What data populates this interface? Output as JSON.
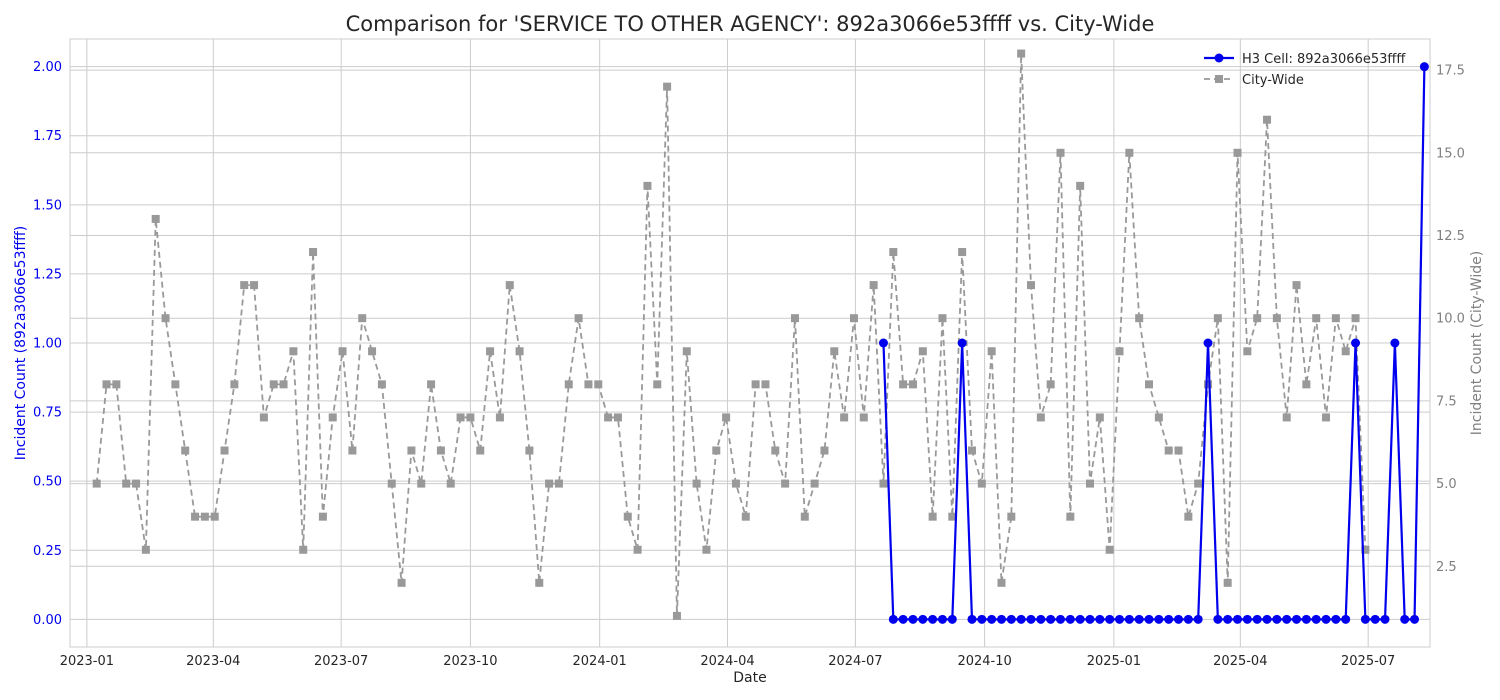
{
  "chart_data": {
    "type": "line",
    "title": "Comparison for 'SERVICE TO OTHER AGENCY': 892a3066e53ffff vs. City-Wide",
    "xlabel": "Date",
    "ylabel_left": "Incident Count (892a3066e53ffff)",
    "ylabel_right": "Incident Count (City-Wide)",
    "x_ticks": [
      "2023-01",
      "2023-04",
      "2023-07",
      "2023-10",
      "2024-01",
      "2024-04",
      "2024-07",
      "2024-10",
      "2025-01",
      "2025-04",
      "2025-07"
    ],
    "y_left_ticks": [
      "0.00",
      "0.25",
      "0.50",
      "0.75",
      "1.00",
      "1.25",
      "1.50",
      "1.75",
      "2.00"
    ],
    "y_right_ticks": [
      "2.5",
      "5.0",
      "7.5",
      "10.0",
      "12.5",
      "15.0",
      "17.5"
    ],
    "y_left_lim": [
      -0.1,
      2.1
    ],
    "y_right_lim": [
      0.06,
      18.44
    ],
    "x_start": "2023-01-08",
    "x_step_days": 7,
    "legend_position": "top-right",
    "colors": {
      "h3": "#0000ee",
      "city": "#999999",
      "left_axis": "#0000ee",
      "right_axis": "#808080"
    },
    "series": [
      {
        "name": "H3 Cell: 892a3066e53ffff",
        "axis": "left",
        "start_index": 80,
        "values": [
          1,
          0,
          0,
          0,
          0,
          0,
          0,
          0,
          1,
          0,
          0,
          0,
          0,
          0,
          0,
          0,
          0,
          0,
          0,
          0,
          0,
          0,
          0,
          0,
          0,
          0,
          0,
          0,
          0,
          0,
          0,
          0,
          0,
          1,
          0,
          0,
          0,
          0,
          0,
          0,
          0,
          0,
          0,
          0,
          0,
          0,
          0,
          0,
          1,
          0,
          0,
          0,
          1,
          0,
          0,
          2
        ]
      },
      {
        "name": "City-Wide",
        "axis": "right",
        "start_index": 0,
        "values": [
          5,
          8,
          8,
          5,
          5,
          3,
          13,
          10,
          8,
          6,
          4,
          4,
          4,
          6,
          8,
          11,
          11,
          7,
          8,
          8,
          9,
          3,
          12,
          4,
          7,
          9,
          6,
          10,
          9,
          8,
          5,
          2,
          6,
          5,
          8,
          6,
          5,
          7,
          7,
          6,
          9,
          7,
          11,
          9,
          6,
          2,
          5,
          5,
          8,
          10,
          8,
          8,
          7,
          7,
          4,
          3,
          14,
          8,
          17,
          1,
          9,
          5,
          3,
          6,
          7,
          5,
          4,
          8,
          8,
          6,
          5,
          10,
          4,
          5,
          6,
          9,
          7,
          10,
          7,
          11,
          5,
          12,
          8,
          8,
          9,
          4,
          10,
          4,
          12,
          6,
          5,
          9,
          2,
          4,
          18,
          11,
          7,
          8,
          15,
          4,
          14,
          5,
          7,
          3,
          9,
          15,
          10,
          8,
          7,
          6,
          6,
          4,
          5,
          8,
          10,
          2,
          15,
          9,
          10,
          16,
          10,
          7,
          11,
          8,
          10,
          7,
          10,
          9,
          10,
          3
        ]
      }
    ]
  }
}
